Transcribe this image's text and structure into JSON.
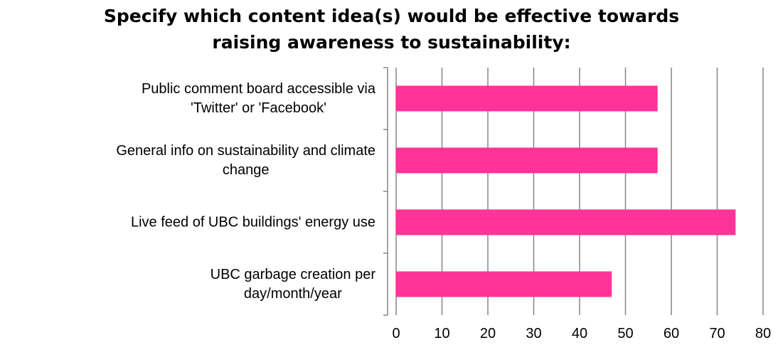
{
  "chart_data": {
    "type": "bar",
    "orientation": "horizontal",
    "title_lines": [
      "Specify which content idea(s) would be effective towards",
      "raising awareness to sustainability:"
    ],
    "categories": [
      [
        "Public comment board accessible via",
        "'Twitter' or 'Facebook'"
      ],
      [
        "General info on sustainability and climate",
        "change"
      ],
      [
        "Live feed of UBC buildings' energy use"
      ],
      [
        "UBC garbage creation per",
        "day/month/year"
      ]
    ],
    "values": [
      57,
      57,
      74,
      47
    ],
    "xlim": [
      0,
      80
    ],
    "xticks": [
      "0",
      "10",
      "20",
      "30",
      "40",
      "50",
      "60",
      "70",
      "80"
    ],
    "grid": "vertical",
    "legend": "none",
    "bar_color": "#ff3399",
    "grid_color": "#868686"
  }
}
